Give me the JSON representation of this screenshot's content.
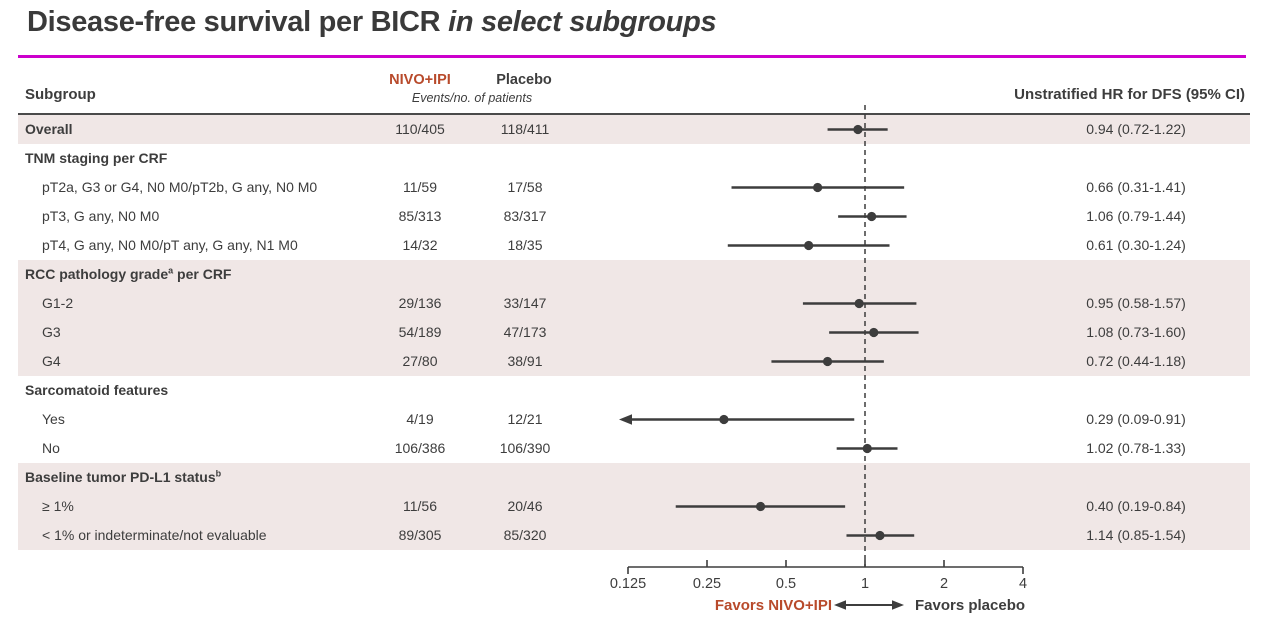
{
  "title": {
    "text": "Disease-free survival per BICR ",
    "italic_text": "in select subgroups"
  },
  "table_header": {
    "subgroup": "Subgroup",
    "nivo": "NIVO+IPI",
    "placebo": "Placebo",
    "events_caption": "Events/no. of patients",
    "hr": "Unstratified HR for DFS (95% CI)"
  },
  "colors": {
    "accent_rule": "#cc00cc",
    "nivo_red": "#b84a2b",
    "text_dark": "#3d3d3d",
    "row_band": "#f0e7e6",
    "plot_ink": "#3d3d3d"
  },
  "chart_data": {
    "type": "forest",
    "x_axis": {
      "scale": "log2",
      "min": 0.125,
      "max": 4,
      "ticks": [
        0.125,
        0.25,
        0.5,
        1,
        2,
        4
      ],
      "tick_labels": [
        "0.125",
        "0.25",
        "0.5",
        "1",
        "2",
        "4"
      ],
      "reference_line": 1
    },
    "footer": {
      "favors_left": "Favors NIVO+IPI",
      "favors_right": "Favors placebo"
    },
    "rows": [
      {
        "type": "data",
        "header_style": true,
        "shaded": true,
        "label": "Overall",
        "nivo": "110/405",
        "placebo": "118/411",
        "hr": 0.94,
        "lo": 0.72,
        "hi": 1.22,
        "hr_text": "0.94 (0.72-1.22)"
      },
      {
        "type": "section",
        "label": "TNM staging per CRF"
      },
      {
        "type": "data",
        "indent": true,
        "label": "pT2a, G3 or G4, N0 M0/pT2b, G any, N0 M0",
        "nivo": "11/59",
        "placebo": "17/58",
        "hr": 0.66,
        "lo": 0.31,
        "hi": 1.41,
        "hr_text": "0.66 (0.31-1.41)"
      },
      {
        "type": "data",
        "indent": true,
        "label": "pT3, G any, N0 M0",
        "nivo": "85/313",
        "placebo": "83/317",
        "hr": 1.06,
        "lo": 0.79,
        "hi": 1.44,
        "hr_text": "1.06 (0.79-1.44)"
      },
      {
        "type": "data",
        "indent": true,
        "label": "pT4, G any, N0 M0/pT any, G any, N1 M0",
        "nivo": "14/32",
        "placebo": "18/35",
        "hr": 0.61,
        "lo": 0.3,
        "hi": 1.24,
        "hr_text": "0.61 (0.30-1.24)"
      },
      {
        "type": "section",
        "shaded": true,
        "label": "RCC pathology grade",
        "sup": "a",
        "label_after": " per CRF"
      },
      {
        "type": "data",
        "indent": true,
        "shaded": true,
        "label": "G1-2",
        "nivo": "29/136",
        "placebo": "33/147",
        "hr": 0.95,
        "lo": 0.58,
        "hi": 1.57,
        "hr_text": "0.95 (0.58-1.57)"
      },
      {
        "type": "data",
        "indent": true,
        "shaded": true,
        "label": "G3",
        "nivo": "54/189",
        "placebo": "47/173",
        "hr": 1.08,
        "lo": 0.73,
        "hi": 1.6,
        "hr_text": "1.08 (0.73-1.60)"
      },
      {
        "type": "data",
        "indent": true,
        "shaded": true,
        "label": "G4",
        "nivo": "27/80",
        "placebo": "38/91",
        "hr": 0.72,
        "lo": 0.44,
        "hi": 1.18,
        "hr_text": "0.72 (0.44-1.18)"
      },
      {
        "type": "section",
        "label": "Sarcomatoid features"
      },
      {
        "type": "data",
        "indent": true,
        "label": "Yes",
        "nivo": "4/19",
        "placebo": "12/21",
        "hr": 0.29,
        "lo": 0.09,
        "hi": 0.91,
        "hr_text": "0.29 (0.09-0.91)",
        "clip_low": true
      },
      {
        "type": "data",
        "indent": true,
        "label": "No",
        "nivo": "106/386",
        "placebo": "106/390",
        "hr": 1.02,
        "lo": 0.78,
        "hi": 1.33,
        "hr_text": "1.02 (0.78-1.33)"
      },
      {
        "type": "section",
        "shaded": true,
        "label": "Baseline tumor PD-L1 status",
        "sup": "b"
      },
      {
        "type": "data",
        "indent": true,
        "shaded": true,
        "label": "≥ 1%",
        "nivo": "11/56",
        "placebo": "20/46",
        "hr": 0.4,
        "lo": 0.19,
        "hi": 0.84,
        "hr_text": "0.40 (0.19-0.84)"
      },
      {
        "type": "data",
        "indent": true,
        "shaded": true,
        "label": "< 1% or indeterminate/not evaluable",
        "nivo": "89/305",
        "placebo": "85/320",
        "hr": 1.14,
        "lo": 0.85,
        "hi": 1.54,
        "hr_text": "1.14 (0.85-1.54)"
      }
    ]
  }
}
